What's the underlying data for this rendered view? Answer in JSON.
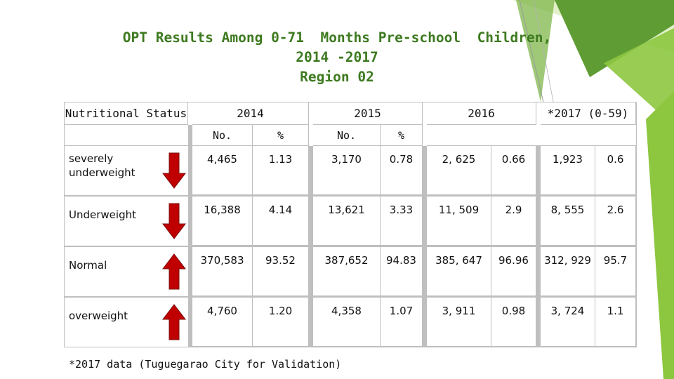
{
  "title": {
    "line1": "OPT Results Among 0-71  Months Pre-school  Children,",
    "line2": "2014 -2017",
    "line3": "Region 02"
  },
  "table": {
    "header": {
      "status": "Nutritional Status",
      "y2014": "2014",
      "y2015": "2015",
      "y2016": "2016",
      "y2017": "*2017 (0-59)",
      "no_2014": "No.",
      "pct_2014": "%",
      "no_2015": "No.",
      "pct_2015": "%"
    },
    "rows": [
      {
        "status": "severely\nunderweight",
        "arrow": "down",
        "v": [
          "4,465",
          "1.13",
          "3,170",
          "0.78",
          "2, 625",
          "0.66",
          "1,923",
          "0.6"
        ]
      },
      {
        "status": "Underweight",
        "arrow": "down",
        "v": [
          "16,388",
          "4.14",
          "13,621",
          "3.33",
          "11, 509",
          "2.9",
          "8, 555",
          "2.6"
        ]
      },
      {
        "status": "Normal",
        "arrow": "up",
        "v": [
          "370,583",
          "93.52",
          "387,652",
          "94.83",
          "385, 647",
          "96.96",
          "312, 929",
          "95.7"
        ]
      },
      {
        "status": "overweight",
        "arrow": "up",
        "v": [
          "4,760",
          "1.20",
          "4,358",
          "1.07",
          "3, 911",
          "0.98",
          "3, 724",
          "1.1"
        ]
      }
    ]
  },
  "footnote": "*2017 data (Tuguegarao City for Validation)",
  "colors": {
    "title": "#3e7a20",
    "grid": "#bfbfbf",
    "arrow": "#c00000",
    "green_light": "#8dc63f",
    "green_dark": "#4e8a2a"
  },
  "icons": {
    "down": "arrow-down-icon",
    "up": "arrow-up-icon"
  }
}
